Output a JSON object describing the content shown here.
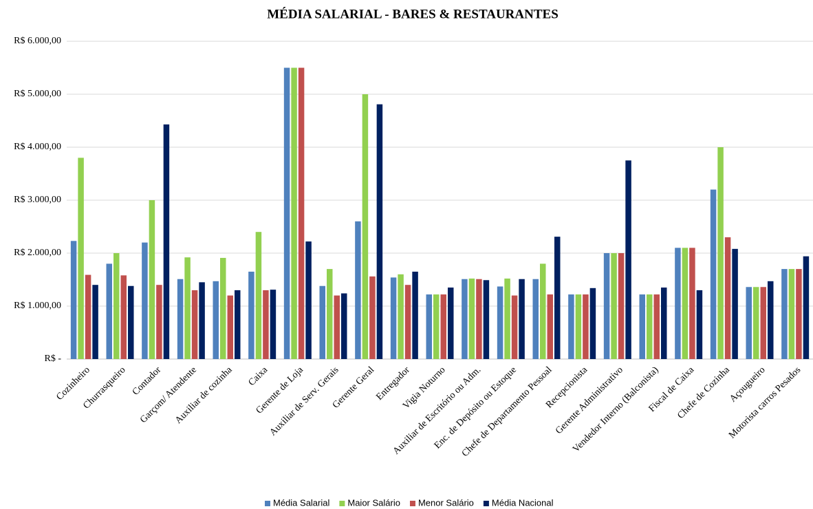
{
  "chart_data": {
    "type": "bar",
    "title": "MÉDIA SALARIAL - BARES & RESTAURANTES",
    "categories": [
      "Cozinheiro",
      "Churrasqueiro",
      "Contador",
      "Garçom/ Atendente",
      "Auxiliar de cozinha",
      "Caixa",
      "Gerente de Loja",
      "Auxiliar de Serv. Gerais",
      "Gerente Geral",
      "Entregador",
      "Vigia Noturno",
      "Auxiliar de Escritório ou Adm.",
      "Enc. de Depósito ou Estoque",
      "Chefe de Departamento Pessoal",
      "Recepcionista",
      "Gerente Administrativo",
      "Vendedor Interno (Balconista)",
      "Fiscal de Caixa",
      "Chefe de Cozinha",
      "Açougueiro",
      "Motorista carros Pesados"
    ],
    "series": [
      {
        "name": "Média Salarial",
        "color": "#4f81bd",
        "values": [
          2230,
          1800,
          2200,
          1510,
          1470,
          1650,
          5500,
          1380,
          2600,
          1540,
          1220,
          1510,
          1370,
          1510,
          1220,
          2000,
          1220,
          2100,
          3200,
          1360,
          1700
        ]
      },
      {
        "name": "Maior Salário",
        "color": "#92d050",
        "values": [
          3800,
          2000,
          3000,
          1920,
          1910,
          2400,
          5500,
          1700,
          5000,
          1600,
          1220,
          1520,
          1520,
          1800,
          1220,
          2000,
          1220,
          2100,
          4000,
          1360,
          1700
        ]
      },
      {
        "name": "Menor Salário",
        "color": "#c0504d",
        "values": [
          1590,
          1580,
          1400,
          1300,
          1200,
          1300,
          5500,
          1200,
          1560,
          1400,
          1220,
          1510,
          1200,
          1220,
          1220,
          2000,
          1220,
          2100,
          2300,
          1360,
          1700
        ]
      },
      {
        "name": "Média Nacional",
        "color": "#002060",
        "values": [
          1400,
          1380,
          4430,
          1450,
          1300,
          1310,
          2220,
          1240,
          4810,
          1650,
          1350,
          1490,
          1510,
          2310,
          1340,
          3750,
          1350,
          1300,
          2080,
          1470,
          1940
        ]
      }
    ],
    "ylim": [
      0,
      6000
    ],
    "yticks": [
      {
        "value": 0,
        "label": "R$ -"
      },
      {
        "value": 1000,
        "label": "R$ 1.000,00"
      },
      {
        "value": 2000,
        "label": "R$ 2.000,00"
      },
      {
        "value": 3000,
        "label": "R$ 3.000,00"
      },
      {
        "value": 4000,
        "label": "R$ 4.000,00"
      },
      {
        "value": 5000,
        "label": "R$ 5.000,00"
      },
      {
        "value": 6000,
        "label": "R$ 6.000,00"
      }
    ],
    "grid": true,
    "legend": "bottom"
  }
}
